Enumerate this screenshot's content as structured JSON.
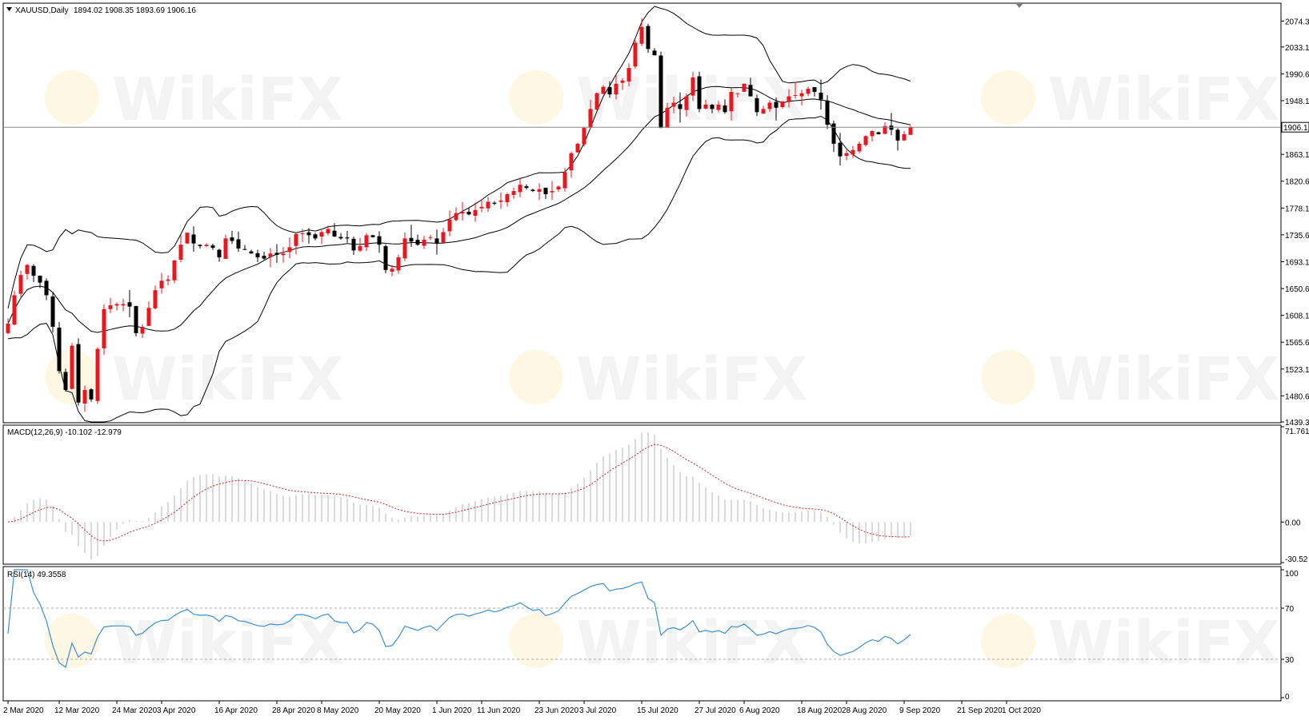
{
  "header": {
    "symbol": "XAUUSD,Daily",
    "ohlc": "1894.02 1908.35 1893.69 1906.16"
  },
  "watermark": "WikiFX",
  "price_axis": {
    "ticks": [
      "2074.3",
      "2033.1",
      "1990.6",
      "1948.1",
      "1906.1",
      "1863.1",
      "1820.6",
      "1778.1",
      "1735.6",
      "1693.1",
      "1650.6",
      "1608.1",
      "1565.6",
      "1523.1",
      "1480.6",
      "1439.3"
    ],
    "current_price_label": "1906.1"
  },
  "date_axis": {
    "ticks": [
      "2 Mar 2020",
      "12 Mar 2020",
      "24 Mar 2020",
      "3 Apr 2020",
      "16 Apr 2020",
      "28 Apr 2020",
      "8 May 2020",
      "20 May 2020",
      "1 Jun 2020",
      "11 Jun 2020",
      "23 Jun 2020",
      "3 Jul 2020",
      "15 Jul 2020",
      "27 Jul 2020",
      "6 Aug 2020",
      "18 Aug 2020",
      "28 Aug 2020",
      "9 Sep 2020",
      "21 Sep 2020",
      "1 Oct 2020"
    ]
  },
  "macd_panel": {
    "label": "MACD(12,26,9) -10.102 -12.979",
    "ticks": [
      "71.761",
      "0.00",
      "-30.52"
    ]
  },
  "rsi_panel": {
    "label": "RSI(14) 49.3558",
    "ticks": [
      "100",
      "70",
      "30",
      "0"
    ]
  },
  "colors": {
    "bull": "#e8171f",
    "bear": "#000000",
    "band": "#000000",
    "macd_hist": "#b4b4b4",
    "macd_signal": "#c0282c",
    "rsi": "#3b8fd6",
    "grid_level": "#aaaaaa"
  },
  "chart_data": [
    {
      "type": "candlestick",
      "title": "XAUUSD,Daily",
      "ylim": [
        1439.3,
        2100
      ],
      "last_ohlc": {
        "open": 1894.02,
        "high": 1908.35,
        "low": 1893.69,
        "close": 1906.16
      },
      "note_closes": [
        1595,
        1640,
        1672,
        1688,
        1671,
        1660,
        1640,
        1590,
        1520,
        1490,
        1560,
        1470,
        1490,
        1475,
        1555,
        1618,
        1624,
        1626,
        1626,
        1622,
        1580,
        1590,
        1620,
        1648,
        1663,
        1665,
        1695,
        1720,
        1739,
        1722,
        1718,
        1720,
        1715,
        1700,
        1730,
        1726,
        1714,
        1712,
        1706,
        1700,
        1698,
        1706,
        1704,
        1706,
        1716,
        1737,
        1738,
        1735,
        1730,
        1740,
        1745,
        1733,
        1730,
        1730,
        1711,
        1718,
        1735,
        1732,
        1720,
        1680,
        1682,
        1700,
        1730,
        1725,
        1720,
        1728,
        1732,
        1722,
        1740,
        1760,
        1770,
        1772,
        1768,
        1775,
        1780,
        1788,
        1785,
        1790,
        1800,
        1805,
        1815,
        1810,
        1805,
        1808,
        1800,
        1805,
        1812,
        1835,
        1865,
        1880,
        1905,
        1935,
        1960,
        1970,
        1958,
        1975,
        1980,
        2000,
        2040,
        2065,
        2030,
        2020,
        1905,
        1937,
        1945,
        1935,
        1955,
        1985,
        1935,
        1942,
        1935,
        1942,
        1930,
        1962,
        1960,
        1975,
        1955,
        1930,
        1935,
        1945,
        1937,
        1947,
        1955,
        1957,
        1960,
        1967,
        1962,
        1950,
        1910,
        1880,
        1860,
        1865,
        1870,
        1880,
        1892,
        1900,
        1895,
        1908,
        1902,
        1885,
        1895,
        1906
      ],
      "bollinger": {
        "period": 20,
        "deviations": 2
      },
      "current_price": 1906.1
    },
    {
      "type": "bar",
      "title": "MACD(12,26,9)",
      "main": -10.102,
      "signal": -12.979,
      "ylim": [
        -30.52,
        71.761
      ]
    },
    {
      "type": "line",
      "title": "RSI(14)",
      "last": 49.3558,
      "ylim": [
        0,
        100
      ],
      "levels": [
        70,
        30
      ]
    }
  ]
}
